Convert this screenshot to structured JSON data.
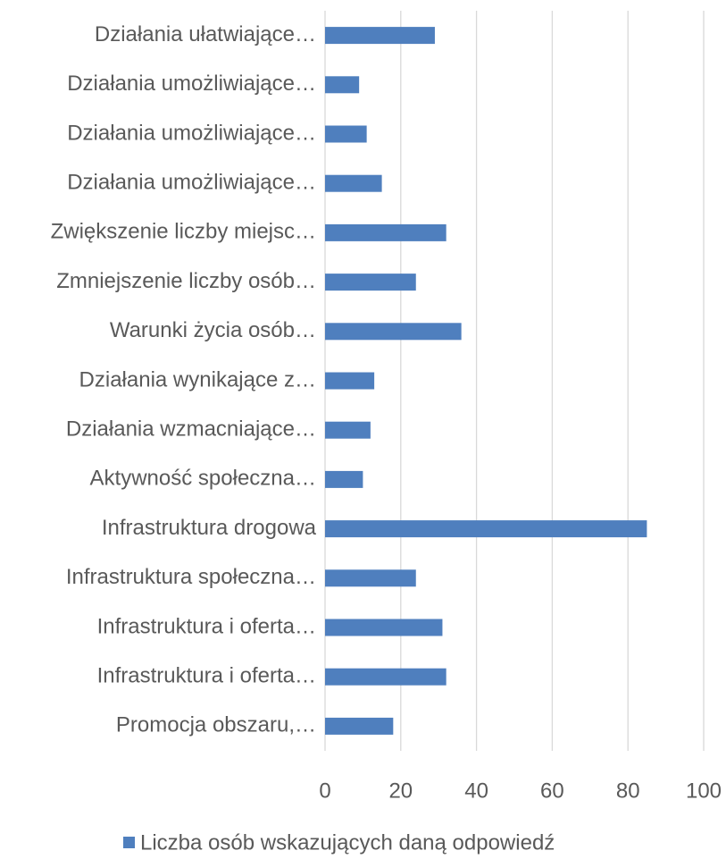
{
  "chart_data": {
    "type": "bar",
    "orientation": "horizontal",
    "categories": [
      "Działania ułatwiające…",
      "Działania umożliwiające…",
      "Działania umożliwiające…",
      "Działania umożliwiające…",
      "Zwiększenie liczby miejsc…",
      "Zmniejszenie liczby osób…",
      "Warunki życia osób…",
      "Działania wynikające z…",
      "Działania wzmacniające…",
      "Aktywność społeczna…",
      "Infrastruktura drogowa",
      "Infrastruktura społeczna…",
      "Infrastruktura i oferta…",
      "Infrastruktura i oferta…",
      "Promocja obszaru,…"
    ],
    "series": [
      {
        "name": "Liczba osób wskazujących daną odpowiedź",
        "color": "#4f7fbe",
        "values": [
          29,
          9,
          11,
          15,
          32,
          24,
          36,
          13,
          12,
          10,
          85,
          24,
          31,
          32,
          18
        ]
      }
    ],
    "xlim": [
      0,
      100
    ],
    "xticks": [
      0,
      20,
      40,
      60,
      80,
      100
    ],
    "grid": true,
    "legend": "bottom"
  }
}
